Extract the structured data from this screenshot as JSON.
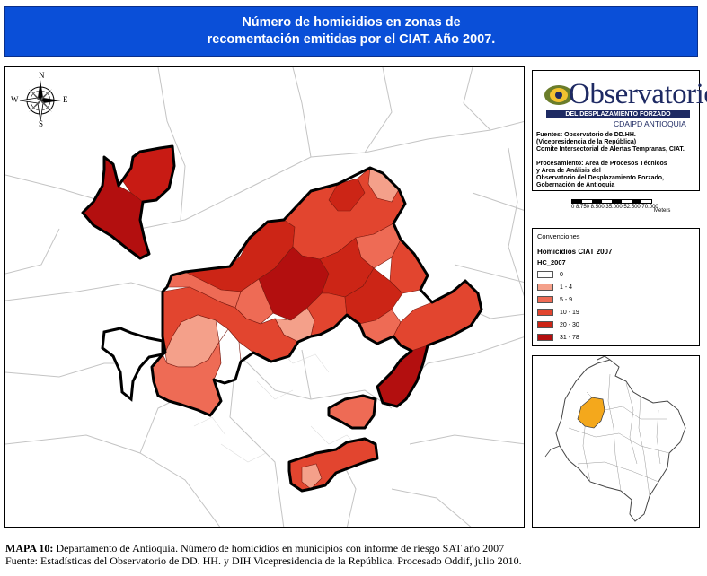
{
  "title": {
    "line1": "Número de homicidios en zonas de",
    "line2": "recomentación emitidas por el CIAT. Año 2007."
  },
  "compass": {
    "n": "N",
    "s": "S",
    "e": "E",
    "w": "W"
  },
  "logo": {
    "name": "Observatorio",
    "strip": "DEL DESPLAZAMIENTO FORZADO",
    "sub": "CDAIPD ANTIOQUIA"
  },
  "sources": {
    "l1": "Fuentes: Observatorio de DD.HH.",
    "l2": "(Vicepresidencia de la República)",
    "l3": "Comite Intersectorial de Alertas Tempranas, CIAT.",
    "l4": "Procesamiento: Area de Procesos Técnicos",
    "l5": "y Area de Análisis del",
    "l6": "Observatorio del Desplazamiento Forzado,",
    "l7": "Gobernación de Antioquia"
  },
  "scale": {
    "ticks": "0 8.750 8.500 35.000 52.500 70.000",
    "unit": "Meters"
  },
  "legend": {
    "heading": "Convenciones",
    "title": "Homicidios CIAT 2007",
    "field": "HC_2007",
    "classes": [
      {
        "label": "0",
        "color": "#ffffff"
      },
      {
        "label": "1 - 4",
        "color": "#f4a08a"
      },
      {
        "label": "5 - 9",
        "color": "#ee6b55"
      },
      {
        "label": "10 - 19",
        "color": "#e2452f"
      },
      {
        "label": "20 - 30",
        "color": "#cc2516"
      },
      {
        "label": "31 - 78",
        "color": "#b30f0f"
      }
    ]
  },
  "colors": {
    "title_band": "#0a4fd8",
    "highlight_department": "#f4a81c",
    "logo_navy": "#1e2a63"
  },
  "caption": {
    "label": "MAPA 10:",
    "line1": " Departamento de Antioquia. Número de homicidios en municipios con informe de riesgo SAT año 2007",
    "line2": "Fuente: Estadísticas del Observatorio de DD. HH. y DIH Vicepresidencia de la República. Procesado Oddif, julio 2010."
  }
}
